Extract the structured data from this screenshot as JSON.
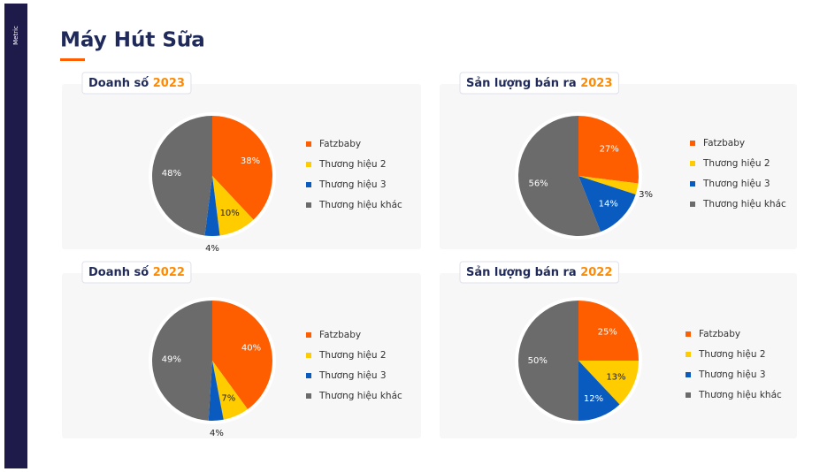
{
  "brand": "Metric",
  "page_title": "Máy Hút Sữa",
  "chart_data": [
    {
      "type": "pie",
      "title": "Doanh số",
      "year": "2023",
      "categories": [
        "Fatzbaby",
        "Thương hiệu 2",
        "Thương hiệu 3",
        "Thương hiệu khác"
      ],
      "values": [
        38,
        10,
        4,
        48
      ],
      "value_labels": [
        "38%",
        "10%",
        "4%",
        "48%"
      ],
      "colors": [
        "#ff5e00",
        "#ffcc00",
        "#0a5bbf",
        "#6b6b6b"
      ]
    },
    {
      "type": "pie",
      "title": "Sản lượng bán ra",
      "year": "2023",
      "categories": [
        "Fatzbaby",
        "Thương hiệu 2",
        "Thương hiệu 3",
        "Thương hiệu khác"
      ],
      "values": [
        27,
        3,
        14,
        56
      ],
      "value_labels": [
        "27%",
        "3%",
        "14%",
        "56%"
      ],
      "colors": [
        "#ff5e00",
        "#ffcc00",
        "#0a5bbf",
        "#6b6b6b"
      ]
    },
    {
      "type": "pie",
      "title": "Doanh số",
      "year": "2022",
      "categories": [
        "Fatzbaby",
        "Thương hiệu 2",
        "Thương hiệu 3",
        "Thương hiệu khác"
      ],
      "values": [
        40,
        7,
        4,
        49
      ],
      "value_labels": [
        "40%",
        "7%",
        "4%",
        "49%"
      ],
      "colors": [
        "#ff5e00",
        "#ffcc00",
        "#0a5bbf",
        "#6b6b6b"
      ]
    },
    {
      "type": "pie",
      "title": "Sản lượng bán ra",
      "year": "2022",
      "categories": [
        "Fatzbaby",
        "Thương hiệu 2",
        "Thương hiệu 3",
        "Thương hiệu khác"
      ],
      "values": [
        25,
        13,
        12,
        50
      ],
      "value_labels": [
        "25%",
        "13%",
        "12%",
        "50%"
      ],
      "colors": [
        "#ff5e00",
        "#ffcc00",
        "#0a5bbf",
        "#6b6b6b"
      ]
    }
  ]
}
